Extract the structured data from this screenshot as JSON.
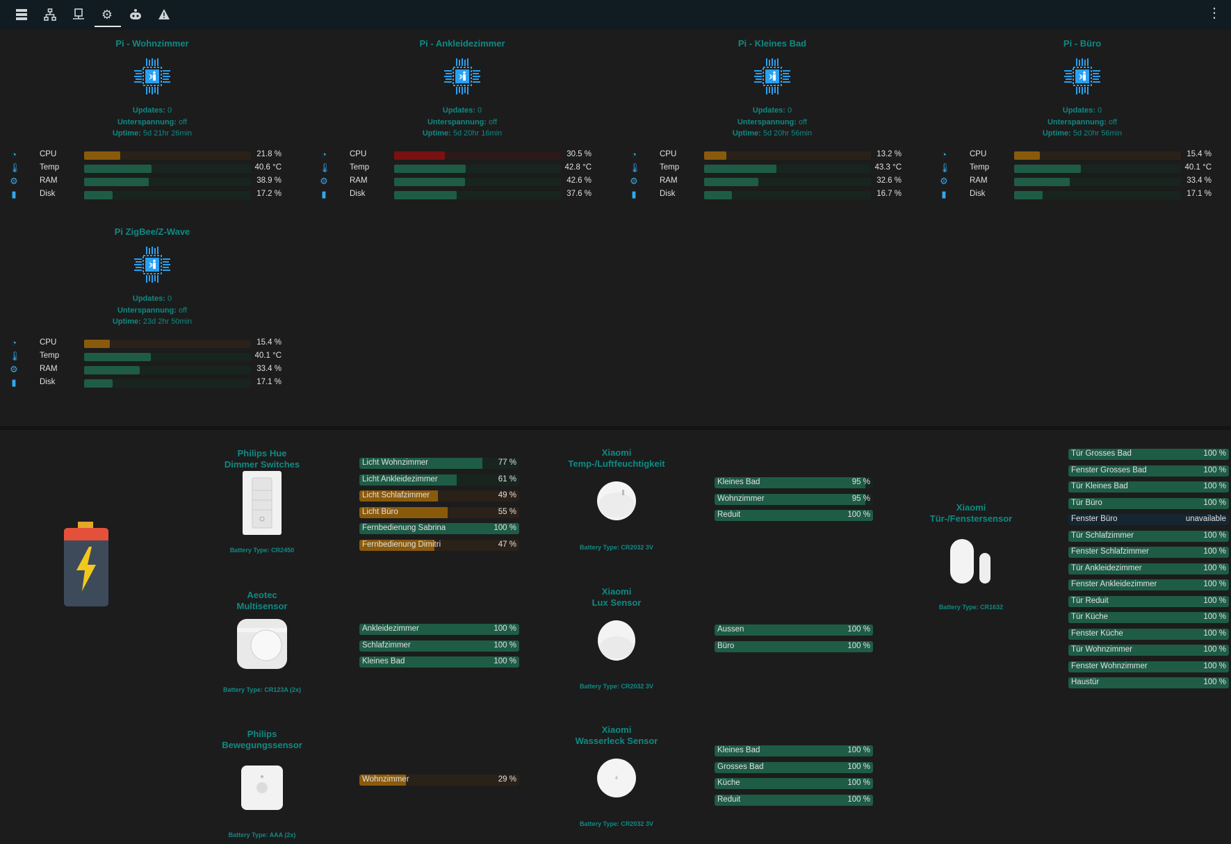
{
  "topbar": {
    "icons": [
      "server-icon",
      "network-icon",
      "ip-icon",
      "gear-icon",
      "robot-icon",
      "warning-icon"
    ],
    "active": "gear-icon",
    "menu": "more-vert-icon"
  },
  "colors": {
    "accent": "#0f8a84",
    "green": "#1e5c46",
    "green_track": "#18251f",
    "orange": "#8a5a0c",
    "orange_track": "#2a2119",
    "red": "#7a1111",
    "red_track": "#2c1919",
    "blue_track": "#152631"
  },
  "labels": {
    "updates": "Updates:",
    "undervoltage": "Unterspannung:",
    "uptime": "Uptime:",
    "battery_prefix": "Battery Type:"
  },
  "pis": [
    {
      "title": "Pi - Wohnzimmer",
      "updates": "0",
      "undervoltage": "off",
      "uptime": "5d 21hr 26min",
      "stats": [
        {
          "label": "CPU",
          "value": "21.8 %",
          "pct": 21.8,
          "color": "orange"
        },
        {
          "label": "Temp",
          "value": "40.6 °C",
          "pct": 40.6,
          "color": "green"
        },
        {
          "label": "RAM",
          "value": "38.9 %",
          "pct": 38.9,
          "color": "green"
        },
        {
          "label": "Disk",
          "value": "17.2 %",
          "pct": 17.2,
          "color": "green"
        }
      ]
    },
    {
      "title": "Pi - Ankleidezimmer",
      "updates": "0",
      "undervoltage": "off",
      "uptime": "5d 20hr 16min",
      "stats": [
        {
          "label": "CPU",
          "value": "30.5 %",
          "pct": 30.5,
          "color": "red"
        },
        {
          "label": "Temp",
          "value": "42.8 °C",
          "pct": 42.8,
          "color": "green"
        },
        {
          "label": "RAM",
          "value": "42.6 %",
          "pct": 42.6,
          "color": "green"
        },
        {
          "label": "Disk",
          "value": "37.6 %",
          "pct": 37.6,
          "color": "green"
        }
      ]
    },
    {
      "title": "Pi - Kleines Bad",
      "updates": "0",
      "undervoltage": "off",
      "uptime": "5d 20hr 56min",
      "stats": [
        {
          "label": "CPU",
          "value": "13.2 %",
          "pct": 13.2,
          "color": "orange"
        },
        {
          "label": "Temp",
          "value": "43.3 °C",
          "pct": 43.3,
          "color": "green"
        },
        {
          "label": "RAM",
          "value": "32.6 %",
          "pct": 32.6,
          "color": "green"
        },
        {
          "label": "Disk",
          "value": "16.7 %",
          "pct": 16.7,
          "color": "green"
        }
      ]
    },
    {
      "title": "Pi - Büro",
      "updates": "0",
      "undervoltage": "off",
      "uptime": "5d 20hr 56min",
      "stats": [
        {
          "label": "CPU",
          "value": "15.4 %",
          "pct": 15.4,
          "color": "orange"
        },
        {
          "label": "Temp",
          "value": "40.1 °C",
          "pct": 40.1,
          "color": "green"
        },
        {
          "label": "RAM",
          "value": "33.4 %",
          "pct": 33.4,
          "color": "green"
        },
        {
          "label": "Disk",
          "value": "17.1 %",
          "pct": 17.1,
          "color": "green"
        }
      ]
    },
    {
      "title": "Pi ZigBee/Z-Wave",
      "updates": "0",
      "undervoltage": "off",
      "uptime": "23d 2hr 50min",
      "stats": [
        {
          "label": "CPU",
          "value": "15.4 %",
          "pct": 15.4,
          "color": "orange"
        },
        {
          "label": "Temp",
          "value": "40.1 °C",
          "pct": 40.1,
          "color": "green"
        },
        {
          "label": "RAM",
          "value": "33.4 %",
          "pct": 33.4,
          "color": "green"
        },
        {
          "label": "Disk",
          "value": "17.1 %",
          "pct": 17.1,
          "color": "green"
        }
      ]
    }
  ],
  "devices": [
    {
      "id": "hue-dimmer",
      "title1": "Philips Hue",
      "title2": "Dimmer Switches",
      "battery": "CR2450"
    },
    {
      "id": "aeotec",
      "title1": "Aeotec",
      "title2": "Multisensor",
      "battery": "CR123A (2x)"
    },
    {
      "id": "hue-motion",
      "title1": "Philips",
      "title2": "Bewegungssensor",
      "battery": "AAA (2x)"
    },
    {
      "id": "xiaomi-temp",
      "title1": "Xiaomi",
      "title2": "Temp-/Luftfeuchtigkeit",
      "battery": "CR2032 3V"
    },
    {
      "id": "xiaomi-lux",
      "title1": "Xiaomi",
      "title2": "Lux Sensor",
      "battery": "CR2032 3V"
    },
    {
      "id": "xiaomi-leak",
      "title1": "Xiaomi",
      "title2": "Wasserleck Sensor",
      "battery": "CR2032 3V"
    },
    {
      "id": "xiaomi-door",
      "title1": "Xiaomi",
      "title2": "Tür-/Fenstersensor",
      "battery": "CR1632"
    }
  ],
  "battery_groups": [
    {
      "device": "hue-dimmer",
      "items": [
        {
          "label": "Licht Wohnzimmer",
          "value": "77 %",
          "pct": 77,
          "color": "green"
        },
        {
          "label": "Licht Ankleidezimmer",
          "value": "61 %",
          "pct": 61,
          "color": "green"
        },
        {
          "label": "Licht Schlafzimmer",
          "value": "49 %",
          "pct": 49,
          "color": "orange"
        },
        {
          "label": "Licht Büro",
          "value": "55 %",
          "pct": 55,
          "color": "orange"
        },
        {
          "label": "Fernbedienung Sabrina",
          "value": "100 %",
          "pct": 100,
          "color": "green"
        },
        {
          "label": "Fernbedienung Dimitri",
          "value": "47 %",
          "pct": 47,
          "color": "orange"
        }
      ]
    },
    {
      "device": "aeotec",
      "items": [
        {
          "label": "Ankleidezimmer",
          "value": "100 %",
          "pct": 100,
          "color": "green"
        },
        {
          "label": "Schlafzimmer",
          "value": "100 %",
          "pct": 100,
          "color": "green"
        },
        {
          "label": "Kleines Bad",
          "value": "100 %",
          "pct": 100,
          "color": "green"
        }
      ]
    },
    {
      "device": "hue-motion",
      "items": [
        {
          "label": "Wohnzimmer",
          "value": "29 %",
          "pct": 29,
          "color": "orange"
        }
      ]
    },
    {
      "device": "xiaomi-temp",
      "items": [
        {
          "label": "Kleines Bad",
          "value": "95 %",
          "pct": 95,
          "color": "green"
        },
        {
          "label": "Wohnzimmer",
          "value": "95 %",
          "pct": 95,
          "color": "green"
        },
        {
          "label": "Reduit",
          "value": "100 %",
          "pct": 100,
          "color": "green"
        }
      ]
    },
    {
      "device": "xiaomi-lux",
      "items": [
        {
          "label": "Aussen",
          "value": "100 %",
          "pct": 100,
          "color": "green"
        },
        {
          "label": "Büro",
          "value": "100 %",
          "pct": 100,
          "color": "green"
        }
      ]
    },
    {
      "device": "xiaomi-leak",
      "items": [
        {
          "label": "Kleines Bad",
          "value": "100 %",
          "pct": 100,
          "color": "green"
        },
        {
          "label": "Grosses Bad",
          "value": "100 %",
          "pct": 100,
          "color": "green"
        },
        {
          "label": "Küche",
          "value": "100 %",
          "pct": 100,
          "color": "green"
        },
        {
          "label": "Reduit",
          "value": "100 %",
          "pct": 100,
          "color": "green"
        }
      ]
    },
    {
      "device": "xiaomi-door",
      "items": [
        {
          "label": "Tür Grosses Bad",
          "value": "100 %",
          "pct": 100,
          "color": "green"
        },
        {
          "label": "Fenster Grosses Bad",
          "value": "100 %",
          "pct": 100,
          "color": "green"
        },
        {
          "label": "Tür Kleines Bad",
          "value": "100 %",
          "pct": 100,
          "color": "green"
        },
        {
          "label": "Tür Büro",
          "value": "100 %",
          "pct": 100,
          "color": "green"
        },
        {
          "label": "Fenster Büro",
          "value": "unavailable",
          "pct": 0,
          "color": "blue"
        },
        {
          "label": "Tür Schlafzimmer",
          "value": "100 %",
          "pct": 100,
          "color": "green"
        },
        {
          "label": "Fenster Schlafzimmer",
          "value": "100 %",
          "pct": 100,
          "color": "green"
        },
        {
          "label": "Tür Ankleidezimmer",
          "value": "100 %",
          "pct": 100,
          "color": "green"
        },
        {
          "label": "Fenster Ankleidezimmer",
          "value": "100 %",
          "pct": 100,
          "color": "green"
        },
        {
          "label": "Tür Reduit",
          "value": "100 %",
          "pct": 100,
          "color": "green"
        },
        {
          "label": "Tür Küche",
          "value": "100 %",
          "pct": 100,
          "color": "green"
        },
        {
          "label": "Fenster Küche",
          "value": "100 %",
          "pct": 100,
          "color": "green"
        },
        {
          "label": "Tür Wohnzimmer",
          "value": "100 %",
          "pct": 100,
          "color": "green"
        },
        {
          "label": "Fenster Wohnzimmer",
          "value": "100 %",
          "pct": 100,
          "color": "green"
        },
        {
          "label": "Haustür",
          "value": "100 %",
          "pct": 100,
          "color": "green"
        }
      ]
    }
  ]
}
